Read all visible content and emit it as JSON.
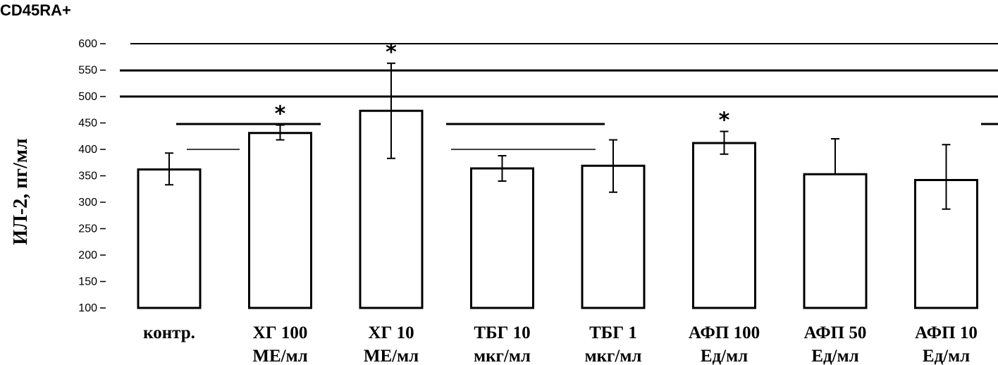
{
  "chart_data": {
    "type": "bar",
    "title": "CD45RA+",
    "ylabel": "ИЛ-2, пг/мл",
    "xlabel": "",
    "ylim": [
      100,
      600
    ],
    "yticks": [
      "600",
      "550",
      "500",
      "450",
      "400",
      "350",
      "300",
      "250",
      "200",
      "150",
      "100"
    ],
    "categories": [
      [
        "контр.",
        ""
      ],
      [
        "ХГ 100",
        "МЕ/мл"
      ],
      [
        "ХГ 10",
        "МЕ/мл"
      ],
      [
        "ТБГ 10",
        "мкг/мл"
      ],
      [
        "ТБГ 1",
        "мкг/мл"
      ],
      [
        "АФП 100",
        "Ед/мл"
      ],
      [
        "АФП 50",
        "Ед/мл"
      ],
      [
        "АФП 10",
        "Ед/мл"
      ]
    ],
    "values": [
      362,
      431,
      473,
      364,
      369,
      412,
      353,
      342
    ],
    "error_low": [
      333,
      418,
      383,
      340,
      319,
      391,
      353,
      287
    ],
    "error_high": [
      393,
      446,
      563,
      388,
      418,
      434,
      420,
      409
    ],
    "significant": [
      false,
      true,
      true,
      false,
      false,
      true,
      false,
      false
    ],
    "significance_marker": "*",
    "grid": false,
    "legend": "none"
  }
}
